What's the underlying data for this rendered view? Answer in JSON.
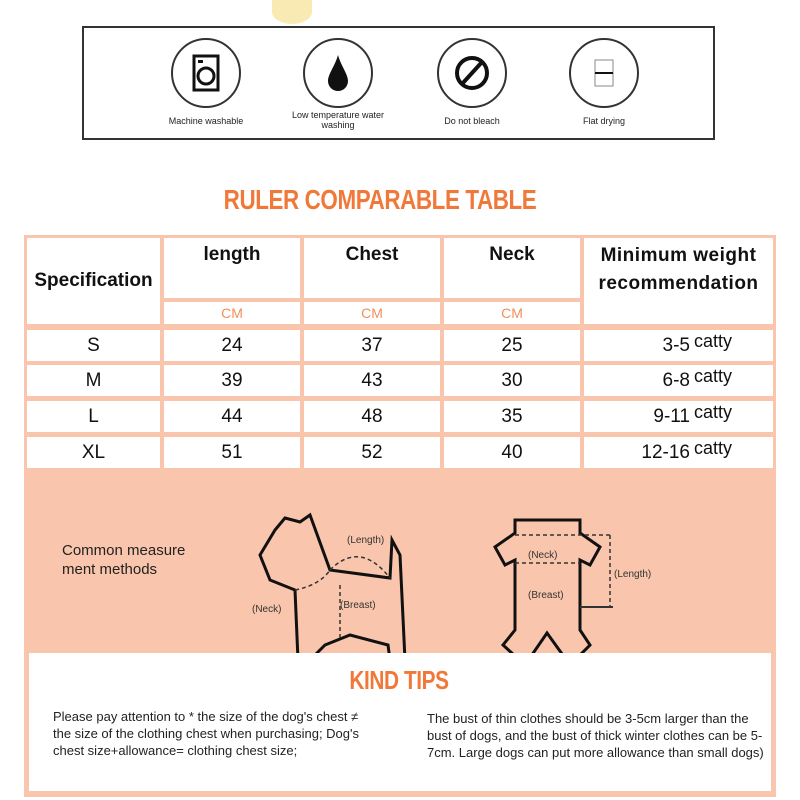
{
  "care_icons": [
    {
      "icon": "washing-machine-icon",
      "label": "Machine washable"
    },
    {
      "icon": "water-drop-icon",
      "label": "Low temperature water washing"
    },
    {
      "icon": "no-bleach-icon",
      "label": "Do not bleach"
    },
    {
      "icon": "flat-drying-icon",
      "label": "Flat drying"
    }
  ],
  "table_title": "RULER COMPARABLE TABLE",
  "table": {
    "headers": [
      "Specification",
      "length",
      "Chest",
      "Neck",
      "Minimum weight recommendation"
    ],
    "units": [
      "CM",
      "CM",
      "CM"
    ],
    "rows": [
      {
        "size": "S",
        "length": "24",
        "chest": "37",
        "neck": "25",
        "weight": "3-5",
        "unit": "catty"
      },
      {
        "size": "M",
        "length": "39",
        "chest": "43",
        "neck": "30",
        "weight": "6-8",
        "unit": "catty"
      },
      {
        "size": "L",
        "length": "44",
        "chest": "48",
        "neck": "35",
        "weight": "9-11",
        "unit": "catty"
      },
      {
        "size": "XL",
        "length": "51",
        "chest": "52",
        "neck": "40",
        "weight": "12-16",
        "unit": "catty"
      }
    ]
  },
  "measure": {
    "label": "Common measure ment methods",
    "dog_labels": {
      "length": "(Length)",
      "neck": "(Neck)",
      "breast": "(Breast)"
    },
    "clothes_labels": {
      "neck": "(Neck)",
      "length": "(Length)",
      "breast": "(Breast)"
    }
  },
  "tips": {
    "title": "KIND TIPS",
    "left": "Please pay attention to * the size of the dog's chest ≠ the size of the clothing chest when purchasing; Dog's chest size+allowance= clothing chest size;",
    "right": "The bust of thin clothes should be 3-5cm larger than the bust of dogs, and the bust of thick winter clothes can be 5-7cm. Large dogs can put more allowance than small dogs)"
  },
  "colors": {
    "accent": "#f07838",
    "panel": "#f9c6ad"
  }
}
